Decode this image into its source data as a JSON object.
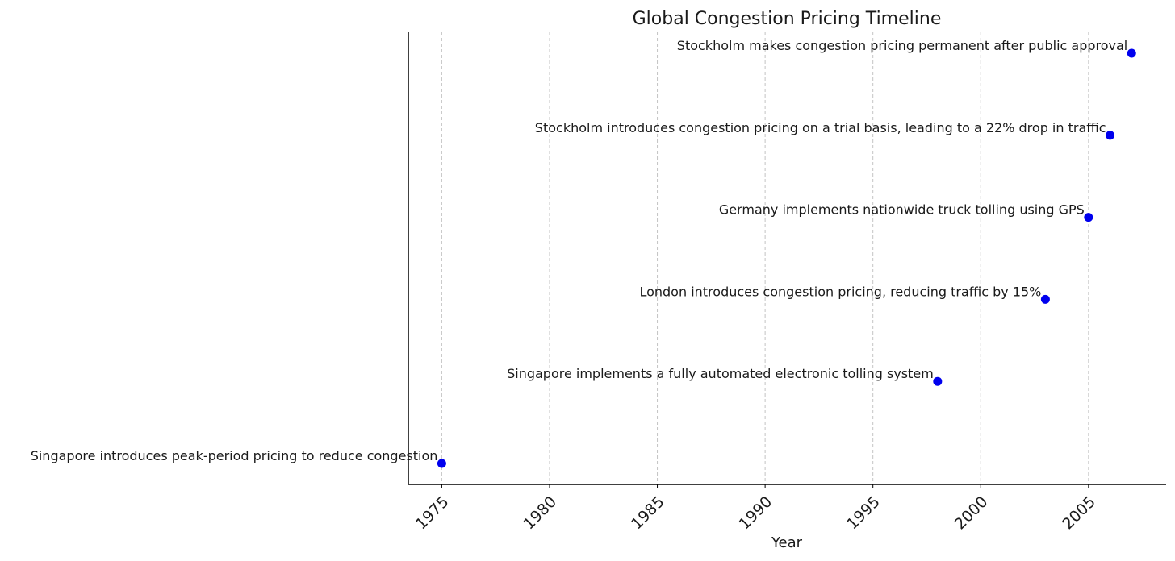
{
  "chart_data": {
    "type": "scatter",
    "title": "Global Congestion Pricing Timeline",
    "xlabel": "Year",
    "ylabel": "",
    "xlim": [
      1973.45,
      2008.6
    ],
    "xticks": [
      1975,
      1980,
      1985,
      1990,
      1995,
      2000,
      2005
    ],
    "xtick_labels": [
      "1975",
      "1980",
      "1985",
      "1990",
      "1995",
      "2000",
      "2005"
    ],
    "grid": "x-dashed",
    "marker_color": "#0000ee",
    "events": [
      {
        "year": 1975,
        "label": "Singapore introduces peak-period pricing to reduce congestion"
      },
      {
        "year": 1998,
        "label": "Singapore implements a fully automated electronic tolling system"
      },
      {
        "year": 2003,
        "label": "London introduces congestion pricing, reducing traffic by 15%"
      },
      {
        "year": 2005,
        "label": "Germany implements nationwide truck tolling using GPS"
      },
      {
        "year": 2006,
        "label": "Stockholm introduces congestion pricing on a trial basis, leading to a 22% drop in traffic"
      },
      {
        "year": 2007,
        "label": "Stockholm makes congestion pricing permanent after public approval"
      }
    ]
  }
}
